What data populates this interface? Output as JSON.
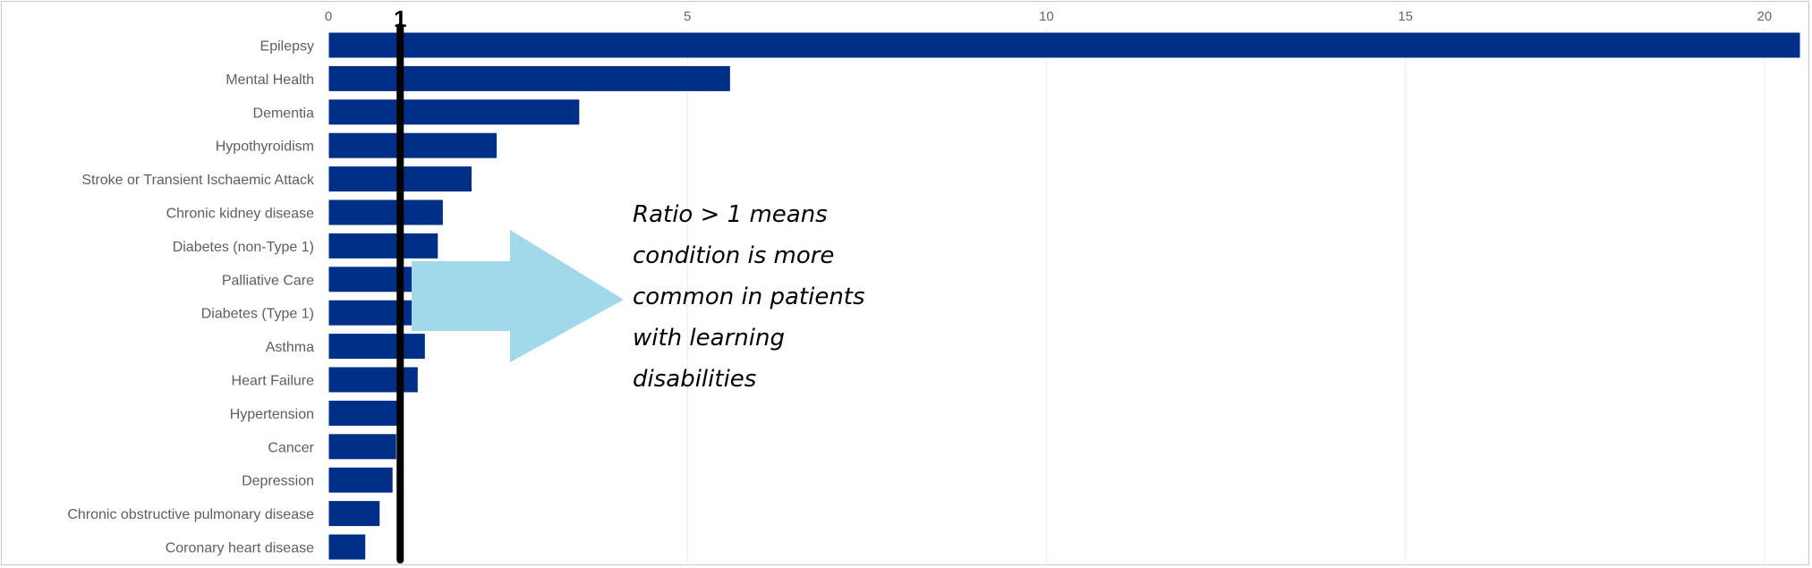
{
  "chart_data": {
    "type": "bar",
    "orientation": "horizontal",
    "categories": [
      "Epilepsy",
      "Mental Health",
      "Dementia",
      "Hypothyroidism",
      "Stroke or Transient Ischaemic Attack",
      "Chronic kidney disease",
      "Diabetes (non-Type 1)",
      "Palliative Care",
      "Diabetes (Type 1)",
      "Asthma",
      "Heart Failure",
      "Hypertension",
      "Cancer",
      "Depression",
      "Chronic obstructive pulmonary disease",
      "Coronary heart disease"
    ],
    "values": [
      20.5,
      5.6,
      3.5,
      2.35,
      2.0,
      1.6,
      1.53,
      1.35,
      1.35,
      1.35,
      1.25,
      1.0,
      0.95,
      0.9,
      0.72,
      0.52
    ],
    "xlim": [
      0,
      20.5
    ],
    "xticks": [
      0,
      5,
      10,
      15,
      20
    ],
    "x_axis_position": "top",
    "grid": true,
    "bar_color": "#002f87",
    "reference_line": {
      "value": 1,
      "label": "1",
      "color": "#000000"
    },
    "annotation": {
      "text": "Ratio > 1 means\ncondition is more\ncommon in patients\nwith learning\ndisabilities",
      "arrow_color": "#a2d9ea"
    }
  }
}
